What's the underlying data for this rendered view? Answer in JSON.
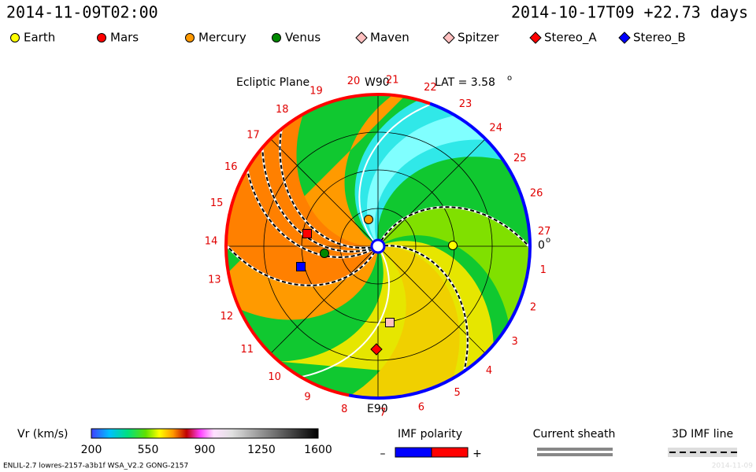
{
  "header": {
    "left": "2014-11-09T02:00",
    "right": "2014-10-17T09  +22.73 days"
  },
  "legend": [
    {
      "label": "Earth",
      "color": "#ffff00",
      "shape": "circle"
    },
    {
      "label": "Mars",
      "color": "#ff0000",
      "shape": "circle"
    },
    {
      "label": "Mercury",
      "color": "#ff9900",
      "shape": "circle"
    },
    {
      "label": "Venus",
      "color": "#008800",
      "shape": "circle"
    },
    {
      "label": "Maven",
      "color": "#ffc0c0",
      "shape": "diamond"
    },
    {
      "label": "Spitzer",
      "color": "#ffc0c0",
      "shape": "diamond"
    },
    {
      "label": "Stereo_A",
      "color": "#ff0000",
      "shape": "diamond"
    },
    {
      "label": "Stereo_B",
      "color": "#0000ff",
      "shape": "diamond"
    }
  ],
  "plot": {
    "title": "Ecliptic Plane",
    "top_label": "W90",
    "bottom_label": "E90",
    "lat": "LAT = 3.58",
    "lat_sup": "o",
    "zero": "0",
    "zero_sup": "o",
    "longitudes": [
      "27",
      "1",
      "2",
      "3",
      "4",
      "5",
      "6",
      "7",
      "8",
      "9",
      "10",
      "11",
      "12",
      "13",
      "14",
      "15",
      "16",
      "17",
      "18",
      "19",
      "20",
      "21",
      "22",
      "23",
      "24",
      "25",
      "26"
    ]
  },
  "colorbar": {
    "title": "Vr (km/s)",
    "ticks": [
      "200",
      "550",
      "900",
      "1250",
      "1600"
    ]
  },
  "imf": {
    "title": "IMF polarity",
    "minus": "–",
    "plus": "+"
  },
  "sheath": {
    "title": "Current sheath"
  },
  "imf3d": {
    "title": "3D IMF line"
  },
  "footer": {
    "left": "ENLIL-2.7 lowres-2157-a3b1f WSA_V2.2 GONG-2157",
    "right": "2014-11-09"
  }
}
